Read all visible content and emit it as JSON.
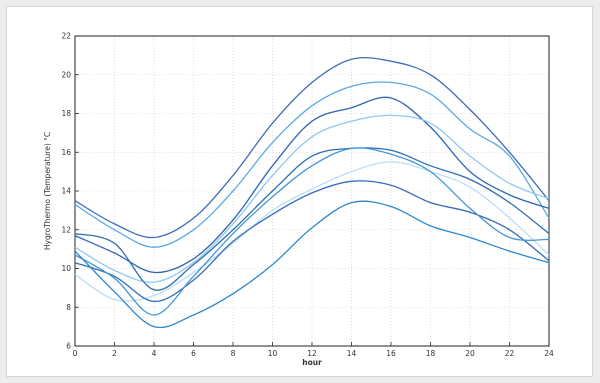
{
  "chart_data": {
    "type": "line",
    "title": "",
    "xlabel": "hour",
    "ylabel": "HygroThermo (Temperature) °C",
    "xlim": [
      0,
      24
    ],
    "ylim": [
      6,
      22
    ],
    "x_ticks": [
      0,
      2,
      4,
      6,
      8,
      10,
      12,
      14,
      16,
      18,
      20,
      22,
      24
    ],
    "y_ticks": [
      6,
      8,
      10,
      12,
      14,
      16,
      18,
      20,
      22
    ],
    "grid": true,
    "legend": "none",
    "x": [
      0,
      2,
      4,
      6,
      8,
      10,
      12,
      14,
      16,
      18,
      20,
      22,
      24
    ],
    "series": [
      {
        "color": "#3f6bb8",
        "values": [
          13.5,
          12.3,
          11.6,
          12.6,
          14.8,
          17.5,
          19.6,
          20.8,
          20.7,
          20.0,
          18.2,
          16.0,
          13.5
        ]
      },
      {
        "color": "#5aa9e6",
        "values": [
          13.3,
          12.0,
          11.1,
          12.0,
          14.0,
          16.5,
          18.4,
          19.4,
          19.6,
          19.0,
          17.2,
          15.8,
          12.6
        ]
      },
      {
        "color": "#2f64b4",
        "values": [
          11.7,
          10.8,
          9.8,
          10.5,
          12.5,
          15.3,
          17.6,
          18.3,
          18.8,
          17.3,
          15.0,
          13.8,
          13.1
        ]
      },
      {
        "color": "#8fc8f2",
        "values": [
          11.1,
          9.9,
          9.3,
          10.3,
          12.3,
          14.8,
          16.8,
          17.6,
          17.9,
          17.5,
          15.8,
          14.4,
          13.6
        ]
      },
      {
        "color": "#2c6fb0",
        "values": [
          11.8,
          11.3,
          8.9,
          10.2,
          12.0,
          14.0,
          15.8,
          16.2,
          16.1,
          15.3,
          14.6,
          13.4,
          11.8
        ]
      },
      {
        "color": "#b9def8",
        "values": [
          9.7,
          8.4,
          8.6,
          9.8,
          11.3,
          13.0,
          14.1,
          15.0,
          15.5,
          15.0,
          14.2,
          12.6,
          10.7
        ]
      },
      {
        "color": "#356cba",
        "values": [
          10.3,
          9.6,
          8.3,
          9.4,
          11.4,
          12.8,
          13.9,
          14.5,
          14.3,
          13.4,
          12.9,
          12.0,
          10.4
        ]
      },
      {
        "color": "#4596d8",
        "values": [
          10.7,
          9.5,
          7.6,
          9.6,
          11.8,
          13.7,
          15.3,
          16.2,
          15.9,
          15.0,
          13.1,
          11.6,
          11.5
        ]
      },
      {
        "color": "#2a87d0",
        "values": [
          10.9,
          8.8,
          7.0,
          7.6,
          8.7,
          10.2,
          12.1,
          13.4,
          13.2,
          12.2,
          11.6,
          10.9,
          10.3
        ]
      }
    ]
  }
}
